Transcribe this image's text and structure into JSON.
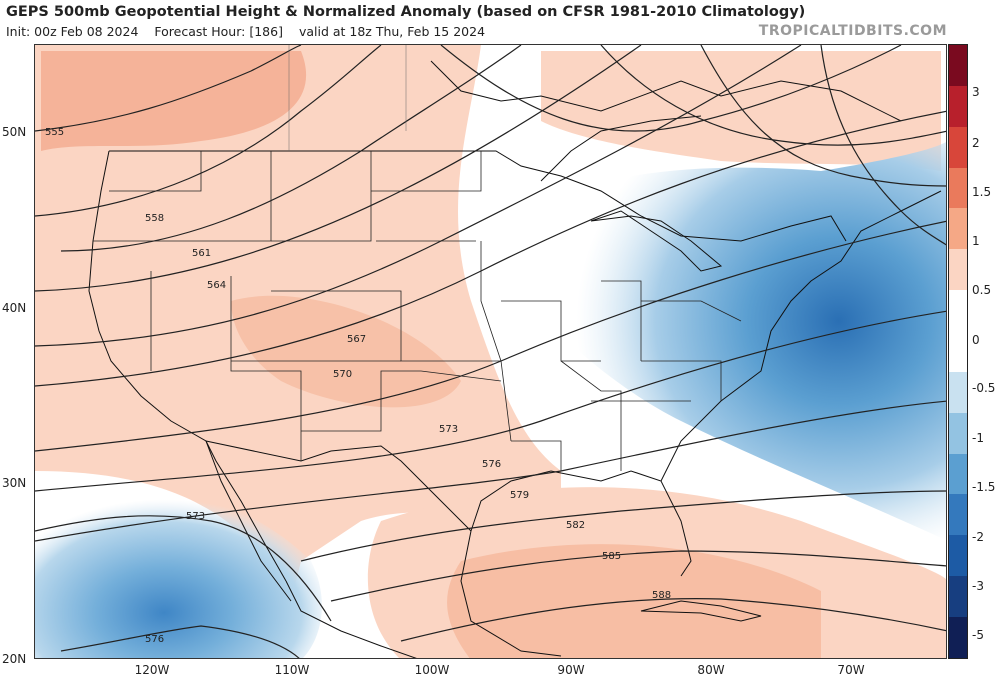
{
  "header": {
    "title": "GEPS 500mb Geopotential Height & Normalized Anomaly (based on CFSR 1981-2010 Climatology)",
    "init": "Init: 00z Feb 08 2024",
    "forecast_hour": "Forecast Hour: [186]",
    "valid": "valid at 18z Thu, Feb 15 2024",
    "brand": "TROPICALTIDBITS.COM"
  },
  "map": {
    "lat_labels": [
      "50N",
      "40N",
      "30N",
      "20N"
    ],
    "lon_labels": [
      "120W",
      "110W",
      "100W",
      "90W",
      "80W",
      "70W"
    ],
    "contour_labels": [
      "555",
      "558",
      "561",
      "564",
      "567",
      "570",
      "573",
      "576",
      "579",
      "582",
      "585",
      "588",
      "573",
      "576"
    ]
  },
  "colorbar": {
    "labels": [
      "3",
      "2",
      "1.5",
      "1",
      "0.5",
      "0",
      "-0.5",
      "-1",
      "-1.5",
      "-2",
      "-3",
      "-5"
    ],
    "colors": [
      "#7a0a1f",
      "#b8202c",
      "#d8463a",
      "#ea7a5c",
      "#f5a886",
      "#fbd5c3",
      "#ffffff",
      "#ffffff",
      "#c9e1f0",
      "#93c3e2",
      "#5b9fd1",
      "#3479bd",
      "#1d5ba5",
      "#173e80",
      "#101f55"
    ]
  }
}
